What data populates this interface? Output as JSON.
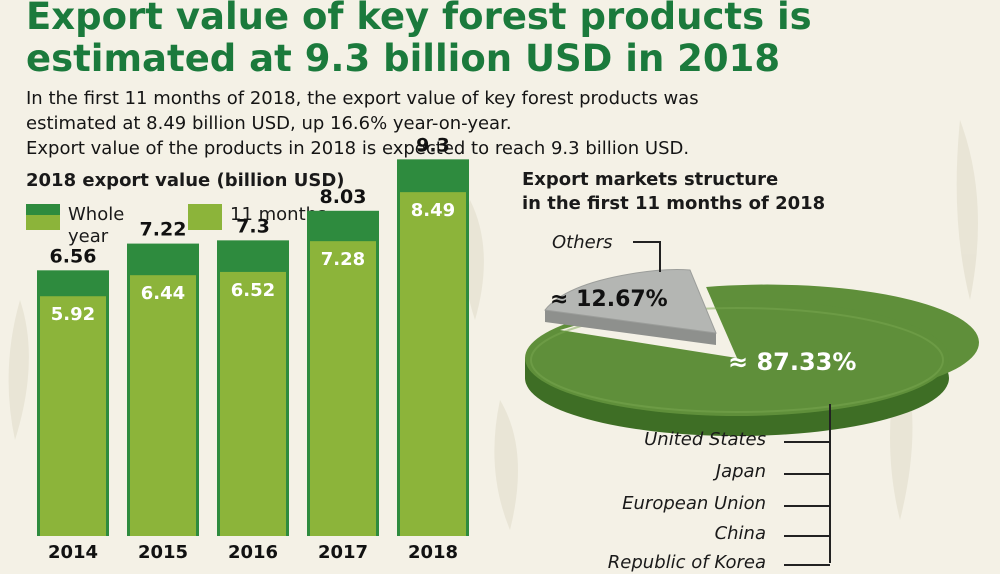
{
  "title_line1": "Export value of key forest products is",
  "title_line2": "estimated at 9.3 billion USD in 2018",
  "intro": [
    "In the first 11 months of 2018, the export value of key forest products was",
    "estimated at 8.49 billion USD, up 16.6% year-on-year.",
    "Export value of the products in 2018 is expected to reach 9.3 billion USD."
  ],
  "chart_data": [
    {
      "type": "bar",
      "title": "2018 export value (billion USD)",
      "categories": [
        "2014",
        "2015",
        "2016",
        "2017",
        "2018"
      ],
      "series": [
        {
          "name": "Whole year",
          "values": [
            6.56,
            7.22,
            7.3,
            8.03,
            9.3
          ]
        },
        {
          "name": "11 months",
          "values": [
            5.92,
            6.44,
            6.52,
            7.28,
            8.49
          ]
        }
      ],
      "legend": [
        "Whole",
        "year",
        "11 months"
      ],
      "legend_position": "top-left",
      "colors": {
        "whole_year": "#2e8b3e",
        "eleven_months": "#8cb43a"
      }
    },
    {
      "type": "pie",
      "title_lines": [
        "Export markets structure",
        "in the first 11 months of 2018"
      ],
      "slices": [
        {
          "label": "Others",
          "value_text": "≈ 12.67%",
          "value": 12.67,
          "color": "#b4b6b3"
        },
        {
          "label": "",
          "value_text": "≈ 87.33%",
          "value": 87.33,
          "color": "#5f8f3a"
        }
      ],
      "markets": [
        "United States",
        "Japan",
        "European Union",
        "China",
        "Republic of Korea"
      ]
    }
  ]
}
